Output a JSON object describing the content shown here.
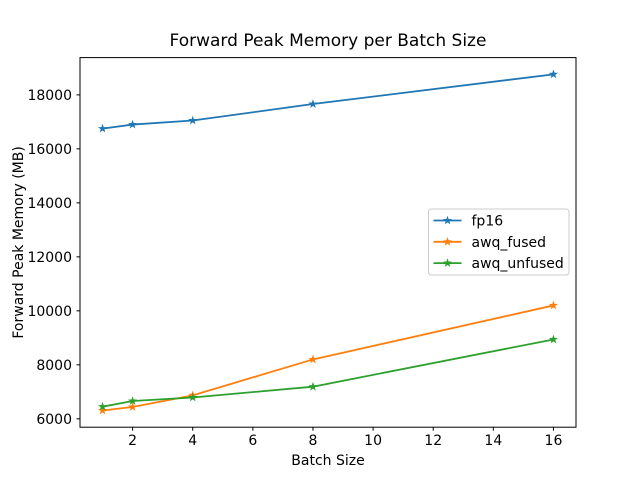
{
  "figure": {
    "background": "#ffffff",
    "spine_color": "#000000",
    "text_color": "#000000",
    "legend_border_color": "#cccccc"
  },
  "chart_data": {
    "type": "line",
    "title": "Forward Peak Memory per Batch Size",
    "xlabel": "Batch Size",
    "ylabel": "Forward Peak Memory (MB)",
    "x": [
      1,
      2,
      4,
      8,
      16
    ],
    "series": [
      {
        "name": "fp16",
        "color": "#1f77b4",
        "values": [
          16750,
          16900,
          17050,
          17660,
          18760
        ]
      },
      {
        "name": "awq_fused",
        "color": "#ff7f0e",
        "values": [
          6310,
          6440,
          6870,
          8200,
          10200
        ]
      },
      {
        "name": "awq_unfused",
        "color": "#2ca02c",
        "values": [
          6450,
          6660,
          6790,
          7190,
          8940
        ]
      }
    ],
    "marker": "star",
    "xticks": [
      2,
      4,
      6,
      8,
      10,
      12,
      14,
      16
    ],
    "yticks": [
      6000,
      8000,
      10000,
      12000,
      14000,
      16000,
      18000
    ],
    "xlim": [
      0.25,
      16.75
    ],
    "ylim": [
      5690,
      19380
    ],
    "grid": false,
    "legend_position": "center right"
  }
}
